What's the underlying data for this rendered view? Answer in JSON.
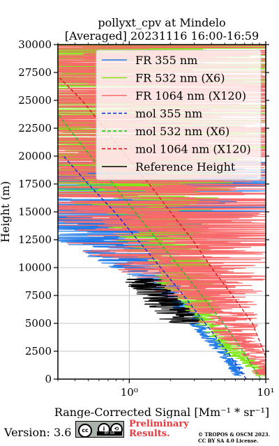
{
  "chart_data": {
    "type": "line",
    "title": "pollyxt_cpv at Mindelo",
    "subtitle": "[Averaged] 20231116 16:00-16:59",
    "xlabel": "Range-Corrected Signal [Mm⁻¹ * sr⁻¹]",
    "ylabel": "Height (m)",
    "xscale": "log",
    "xlim": [
      0.3,
      10
    ],
    "ylim": [
      0,
      30000
    ],
    "x_ticks": [
      1,
      10
    ],
    "x_tick_labels": [
      "10⁰",
      "10¹"
    ],
    "y_ticks": [
      0,
      2500,
      5000,
      7500,
      10000,
      12500,
      15000,
      17500,
      20000,
      22500,
      25000,
      27500,
      30000
    ],
    "y_tick_labels": [
      "0",
      "2500",
      "5000",
      "7500",
      "10000",
      "12500",
      "15000",
      "17500",
      "20000",
      "22500",
      "25000",
      "27500",
      "30000"
    ],
    "grid": true,
    "legend_position": "top-right",
    "series": [
      {
        "name": "FR 355 nm",
        "color": "#1f7ae8",
        "style": "solid",
        "kind": "noisy",
        "points": [
          [
            6.5,
            300
          ],
          [
            5.6,
            1500
          ],
          [
            4.8,
            2500
          ],
          [
            4.0,
            3500
          ],
          [
            3.4,
            4500
          ],
          [
            2.9,
            5500
          ],
          [
            2.5,
            6500
          ],
          [
            2.1,
            7500
          ],
          [
            1.75,
            8500
          ],
          [
            1.45,
            9500
          ],
          [
            1.2,
            10500
          ],
          [
            1.0,
            11500
          ],
          [
            0.85,
            12500
          ],
          [
            0.72,
            13500
          ],
          [
            0.62,
            14500
          ],
          [
            0.53,
            15500
          ],
          [
            0.46,
            16500
          ],
          [
            0.4,
            17500
          ],
          [
            0.35,
            18500
          ],
          [
            0.31,
            19500
          ]
        ],
        "noise": [
          0.02,
          0.02,
          0.02,
          0.02,
          0.02,
          0.025,
          0.03,
          0.04,
          0.05,
          0.07,
          0.1,
          0.14,
          0.2,
          0.3,
          0.4,
          0.5,
          0.6,
          0.7,
          0.8,
          0.9
        ]
      },
      {
        "name": "FR 532 nm (X6)",
        "color": "#7fe817",
        "style": "solid",
        "kind": "noisy",
        "points": [
          [
            9.5,
            300
          ],
          [
            8.0,
            1200
          ],
          [
            6.2,
            2200
          ],
          [
            5.2,
            3200
          ],
          [
            4.4,
            4200
          ],
          [
            3.7,
            5200
          ],
          [
            3.3,
            6200
          ],
          [
            2.9,
            7200
          ],
          [
            2.6,
            8200
          ],
          [
            2.35,
            9200
          ],
          [
            2.15,
            10200
          ],
          [
            1.95,
            11200
          ],
          [
            1.8,
            12200
          ],
          [
            1.65,
            13200
          ],
          [
            1.5,
            14200
          ],
          [
            1.35,
            15200
          ],
          [
            1.2,
            16200
          ],
          [
            1.05,
            17200
          ],
          [
            0.9,
            18200
          ],
          [
            0.8,
            19200
          ],
          [
            0.7,
            20200
          ],
          [
            0.6,
            21500
          ],
          [
            0.5,
            23000
          ],
          [
            0.45,
            25000
          ],
          [
            0.4,
            27500
          ],
          [
            0.38,
            30000
          ]
        ],
        "noise": [
          0.02,
          0.02,
          0.03,
          0.03,
          0.03,
          0.04,
          0.05,
          0.06,
          0.07,
          0.08,
          0.09,
          0.1,
          0.11,
          0.12,
          0.14,
          0.16,
          0.2,
          0.25,
          0.3,
          0.35,
          0.4,
          0.5,
          0.6,
          0.7,
          0.8,
          0.9
        ]
      },
      {
        "name": "FR 1064 nm (X120)",
        "color": "#f8696b",
        "style": "solid",
        "kind": "noisy",
        "points": [
          [
            10,
            300
          ],
          [
            9.5,
            1200
          ],
          [
            8.5,
            2200
          ],
          [
            7.0,
            3200
          ],
          [
            6.0,
            4200
          ],
          [
            5.0,
            5200
          ],
          [
            4.5,
            6200
          ],
          [
            4.0,
            7200
          ],
          [
            3.6,
            8200
          ],
          [
            3.3,
            9200
          ],
          [
            3.0,
            10200
          ],
          [
            2.8,
            11200
          ],
          [
            2.6,
            12200
          ],
          [
            2.4,
            13200
          ],
          [
            2.2,
            14200
          ],
          [
            2.0,
            15200
          ],
          [
            1.8,
            16200
          ],
          [
            1.6,
            17200
          ],
          [
            1.5,
            18200
          ],
          [
            1.4,
            19200
          ],
          [
            1.3,
            20200
          ],
          [
            1.2,
            21500
          ],
          [
            1.1,
            23000
          ],
          [
            1.0,
            25000
          ],
          [
            0.95,
            27500
          ],
          [
            0.9,
            30000
          ]
        ],
        "noise": [
          0.03,
          0.03,
          0.04,
          0.05,
          0.06,
          0.08,
          0.1,
          0.12,
          0.15,
          0.18,
          0.2,
          0.25,
          0.3,
          0.35,
          0.4,
          0.4,
          0.45,
          0.45,
          0.5,
          0.5,
          0.55,
          0.6,
          0.65,
          0.7,
          0.75,
          0.8
        ]
      },
      {
        "name": "mol 355 nm",
        "color": "#0b1fcc",
        "style": "dashed",
        "kind": "line",
        "points": [
          [
            7.2,
            0
          ],
          [
            5.2,
            2500
          ],
          [
            3.6,
            5000
          ],
          [
            2.5,
            7500
          ],
          [
            1.7,
            10000
          ],
          [
            1.15,
            12500
          ],
          [
            0.78,
            15000
          ],
          [
            0.5,
            17500
          ],
          [
            0.33,
            20000
          ]
        ]
      },
      {
        "name": "mol 532 nm (X6)",
        "color": "#14c014",
        "style": "dashed",
        "kind": "line",
        "points": [
          [
            9.2,
            0
          ],
          [
            6.8,
            2500
          ],
          [
            4.9,
            5000
          ],
          [
            3.4,
            7500
          ],
          [
            2.35,
            10000
          ],
          [
            1.6,
            12500
          ],
          [
            1.1,
            15000
          ],
          [
            0.76,
            17500
          ],
          [
            0.52,
            20000
          ],
          [
            0.36,
            22500
          ],
          [
            0.3,
            23800
          ]
        ]
      },
      {
        "name": "mol 1064 nm (X120)",
        "color": "#d01010",
        "style": "dashed",
        "kind": "line",
        "points": [
          [
            10,
            2000
          ],
          [
            8.0,
            5000
          ],
          [
            5.7,
            7500
          ],
          [
            4.0,
            10000
          ],
          [
            2.9,
            12500
          ],
          [
            2.0,
            15000
          ],
          [
            1.4,
            17500
          ],
          [
            0.95,
            20000
          ],
          [
            0.66,
            22500
          ],
          [
            0.45,
            25000
          ],
          [
            0.31,
            27000
          ]
        ]
      },
      {
        "name": "Reference Height",
        "color": "#000000",
        "style": "solid",
        "kind": "noisy",
        "points": [
          [
            2.45,
            5000
          ],
          [
            2.3,
            5500
          ],
          [
            2.1,
            6000
          ],
          [
            1.9,
            6500
          ],
          [
            1.75,
            7000
          ],
          [
            1.6,
            7500
          ],
          [
            1.45,
            8000
          ],
          [
            1.35,
            8500
          ],
          [
            1.25,
            9000
          ]
        ],
        "noise": [
          0.05,
          0.05,
          0.05,
          0.05,
          0.05,
          0.05,
          0.05,
          0.05,
          0.05
        ]
      }
    ]
  },
  "footer": {
    "version": "Version: 3.6",
    "prelim_line1": "Preliminary",
    "prelim_line2": "Results.",
    "credit_line1": "© TROPOS & OSCM 2023.",
    "credit_line2": "CC BY SA 4.0 License.",
    "cc_label": "BY   SA"
  }
}
